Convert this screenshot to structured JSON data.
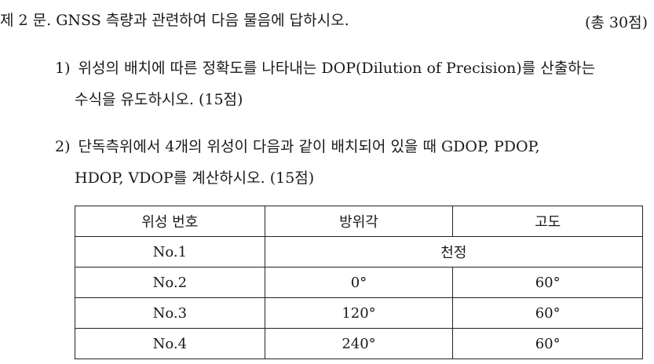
{
  "question": {
    "header": "제 2 문. GNSS 측량과 관련하여 다음 물음에 답하시오.",
    "points": "(총 30점)"
  },
  "sub1": {
    "num": "1)",
    "line1": "위성의 배치에 따른 정확도를 나타내는 DOP(Dilution of Precision)를 산출하는",
    "line2": "수식을 유도하시오. (15점)"
  },
  "sub2": {
    "num": "2)",
    "line1": "단독측위에서 4개의 위성이 다음과 같이 배치되어 있을 때 GDOP, PDOP,",
    "line2": "HDOP, VDOP를 계산하시오. (15점)"
  },
  "table": {
    "headers": [
      "위성 번호",
      "방위각",
      "고도"
    ],
    "rows": [
      {
        "no": "No.1",
        "merged": "천정"
      },
      {
        "no": "No.2",
        "azimuth": "0°",
        "elevation": "60°"
      },
      {
        "no": "No.3",
        "azimuth": "120°",
        "elevation": "60°"
      },
      {
        "no": "No.4",
        "azimuth": "240°",
        "elevation": "60°"
      }
    ]
  }
}
